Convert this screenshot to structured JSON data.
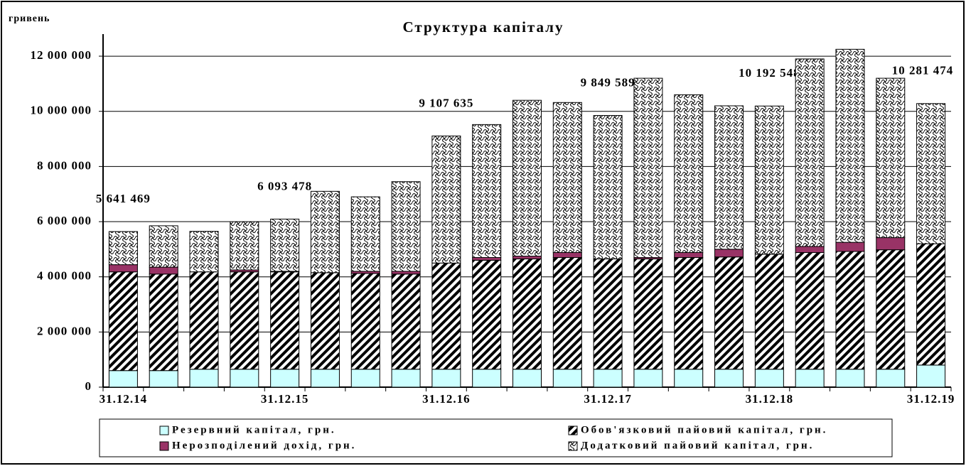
{
  "chart_data": {
    "type": "stacked_bar",
    "title": "Структура капіталу",
    "y_label": "гривень",
    "categories": [
      "31.12.14",
      null,
      null,
      null,
      "31.12.15",
      null,
      null,
      null,
      "31.12.16",
      null,
      null,
      null,
      "31.12.17",
      null,
      null,
      null,
      "31.12.18",
      null,
      null,
      null,
      "31.12.19"
    ],
    "series": [
      {
        "name": "Резервний капітал, грн.",
        "color": "#ccffff",
        "pattern": "solid",
        "values": [
          600000,
          600000,
          650000,
          650000,
          650000,
          650000,
          650000,
          650000,
          650000,
          650000,
          650000,
          650000,
          650000,
          650000,
          650000,
          650000,
          650000,
          650000,
          650000,
          650000,
          800000
        ]
      },
      {
        "name": "Обов'язковий пайовий капітал, грн.",
        "color": "#000000",
        "pattern": "diagonal",
        "values": [
          3580000,
          3500000,
          3530000,
          3530000,
          3530000,
          3500000,
          3470000,
          3450000,
          3850000,
          3950000,
          4000000,
          4050000,
          4000000,
          4000000,
          4050000,
          4070000,
          4170000,
          4230000,
          4270000,
          4330000,
          4400000
        ]
      },
      {
        "name": "Нерозподілений дохід, грн.",
        "color": "#993366",
        "pattern": "solid",
        "values": [
          260000,
          250000,
          0,
          70000,
          20000,
          0,
          80000,
          100000,
          0,
          100000,
          100000,
          180000,
          0,
          50000,
          180000,
          280000,
          0,
          220000,
          330000,
          440000,
          0
        ]
      },
      {
        "name": "Додатковий пайовий капітал, грн.",
        "color": "#000000",
        "pattern": "crosshatch",
        "values": [
          1201469,
          1500000,
          1470000,
          1750000,
          1893478,
          2950000,
          2700000,
          3250000,
          4607635,
          4820000,
          5650000,
          5440000,
          5199589,
          6500000,
          5720000,
          5200000,
          5372548,
          6800000,
          7000000,
          5780000,
          5081474
        ]
      }
    ],
    "total_labels": [
      "5 641 469",
      null,
      null,
      null,
      "6 093 478",
      null,
      null,
      null,
      "9 107 635",
      null,
      null,
      null,
      "9 849 589",
      null,
      null,
      null,
      "10 192 548",
      null,
      null,
      null,
      "10 281 474"
    ],
    "ylim": [
      0,
      12800000
    ],
    "yticks": [
      0,
      {
        "value": 2000000,
        "label": "2 000 000"
      },
      {
        "value": 4000000,
        "label": "4 000 000"
      },
      {
        "value": 6000000,
        "label": "6 000 000"
      },
      {
        "value": 8000000,
        "label": "8 000 000"
      },
      {
        "value": 10000000,
        "label": "10 000 000"
      },
      {
        "value": 12000000,
        "label": "12 000 000"
      }
    ],
    "grid": true,
    "legend": "bottom"
  }
}
